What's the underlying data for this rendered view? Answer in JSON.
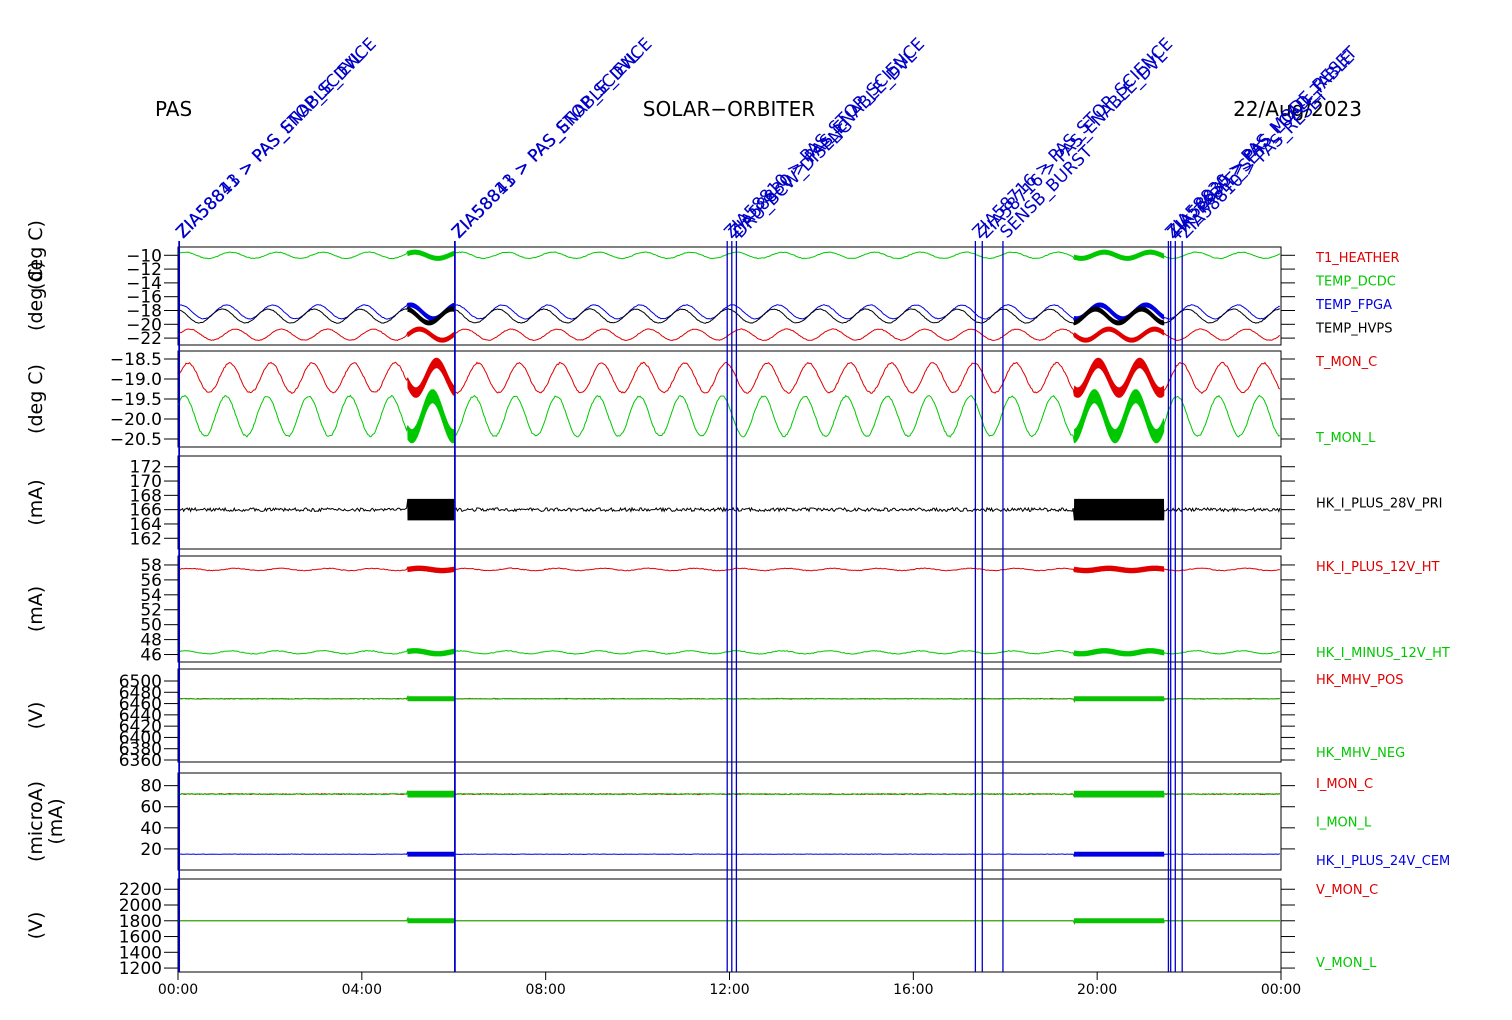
{
  "header": {
    "instrument": "PAS",
    "mission": "SOLAR−ORBITER",
    "date": "22/Aug/2023"
  },
  "colors": {
    "red": "#e00000",
    "green": "#00c800",
    "blue": "#0000e0",
    "black": "#000000",
    "event": "#0000c8"
  },
  "time_axis": {
    "label": "",
    "range_hours": [
      0,
      24
    ],
    "ticks": [
      {
        "h": 0,
        "label": "00:00"
      },
      {
        "h": 4,
        "label": "04:00"
      },
      {
        "h": 8,
        "label": "08:00"
      },
      {
        "h": 12,
        "label": "12:00"
      },
      {
        "h": 16,
        "label": "16:00"
      },
      {
        "h": 20,
        "label": "20:00"
      },
      {
        "h": 24,
        "label": "00:00"
      }
    ]
  },
  "chart_data": [
    {
      "type": "line",
      "ylabel": "(deg C)",
      "ylim": [
        -23,
        -8.8
      ],
      "ticks": [
        {
          "v": -10,
          "label": "−10"
        },
        {
          "v": -12,
          "label": "−12"
        },
        {
          "v": -14,
          "label": "−14"
        },
        {
          "v": -16,
          "label": "−16"
        },
        {
          "v": -18,
          "label": "−18"
        },
        {
          "v": -20,
          "label": "−20"
        },
        {
          "v": -22,
          "label": "−22"
        }
      ],
      "series": [
        {
          "name": "T1_HEATHER",
          "color": "#e00000",
          "mean": -21.5,
          "amp": 0.8,
          "period_h": 1.0,
          "noise": 0.05
        },
        {
          "name": "TEMP_DCDC",
          "color": "#00c800",
          "mean": -10.0,
          "amp": 0.45,
          "period_h": 1.0,
          "noise": 0.05
        },
        {
          "name": "TEMP_FPGA",
          "color": "#0000e0",
          "mean": -18.2,
          "amp": 1.0,
          "period_h": 1.0,
          "noise": 0.05
        },
        {
          "name": "TEMP_HVPS",
          "color": "#000000",
          "mean": -18.8,
          "amp": 1.0,
          "period_h": 1.0,
          "noise": 0.05
        }
      ]
    },
    {
      "type": "line",
      "ylabel": "(deg C)",
      "ylim": [
        -20.7,
        -18.3
      ],
      "ticks": [
        {
          "v": -18.5,
          "label": "−18.5"
        },
        {
          "v": -19.0,
          "label": "−19.0"
        },
        {
          "v": -19.5,
          "label": "−19.5"
        },
        {
          "v": -20.0,
          "label": "−20.0"
        },
        {
          "v": -20.5,
          "label": "−20.5"
        }
      ],
      "series": [
        {
          "name": "T_MON_C",
          "color": "#e00000",
          "mean": -18.97,
          "amp": 0.37,
          "period_h": 0.9,
          "noise": 0.02
        },
        {
          "name": "T_MON_L",
          "color": "#00c800",
          "mean": -19.93,
          "amp": 0.5,
          "period_h": 0.9,
          "noise": 0.02
        }
      ]
    },
    {
      "type": "line",
      "ylabel": "(mA)",
      "ylim": [
        160.5,
        173.5
      ],
      "ticks": [
        {
          "v": 162,
          "label": "162"
        },
        {
          "v": 164,
          "label": "164"
        },
        {
          "v": 166,
          "label": "166"
        },
        {
          "v": 168,
          "label": "168"
        },
        {
          "v": 170,
          "label": "170"
        },
        {
          "v": 172,
          "label": "172"
        }
      ],
      "series": [
        {
          "name": "HK_I_PLUS_28V_PRI",
          "color": "#000000",
          "mean": 166,
          "amp": 0,
          "period_h": 1,
          "noise": 0.25
        }
      ]
    },
    {
      "type": "line",
      "ylabel": "(mA)",
      "ylim": [
        45,
        59.2
      ],
      "ticks": [
        {
          "v": 46,
          "label": "46"
        },
        {
          "v": 48,
          "label": "48"
        },
        {
          "v": 50,
          "label": "50"
        },
        {
          "v": 52,
          "label": "52"
        },
        {
          "v": 54,
          "label": "54"
        },
        {
          "v": 56,
          "label": "56"
        },
        {
          "v": 58,
          "label": "58"
        }
      ],
      "series": [
        {
          "name": "HK_I_PLUS_12V_HT",
          "color": "#e00000",
          "mean": 57.4,
          "amp": 0.15,
          "period_h": 1.0,
          "noise": 0.05
        },
        {
          "name": "HK_I_MINUS_12V_HT",
          "color": "#00c800",
          "mean": 46.3,
          "amp": 0.2,
          "period_h": 1.0,
          "noise": 0.05
        }
      ]
    },
    {
      "type": "line",
      "ylabel": "(V)",
      "ylim": [
        0,
        10
      ],
      "ticks": [],
      "tick_labels_overlapping": [
        "6500",
        "6480",
        "6460",
        "6440",
        "6420",
        "6400",
        "6380",
        "6360"
      ],
      "series": [
        {
          "name": "HK_MHV_POS",
          "color": "#e00000",
          "mean": 6.8,
          "amp": 0,
          "period_h": 1,
          "noise": 0.04
        },
        {
          "name": "HK_MHV_NEG",
          "color": "#00c800",
          "mean": 6.8,
          "amp": 0,
          "period_h": 1,
          "noise": 0.04
        }
      ]
    },
    {
      "type": "line",
      "ylabel": "(microA)",
      "ylabel2": "(mA)",
      "ylim": [
        0,
        92
      ],
      "ticks": [
        {
          "v": 20,
          "label": "20"
        },
        {
          "v": 40,
          "label": "40"
        },
        {
          "v": 60,
          "label": "60"
        },
        {
          "v": 80,
          "label": "80"
        }
      ],
      "series": [
        {
          "name": "I_MON_C",
          "color": "#e00000",
          "mean": 72,
          "amp": 0,
          "period_h": 1,
          "noise": 0.5
        },
        {
          "name": "I_MON_L",
          "color": "#00c800",
          "mean": 72,
          "amp": 0,
          "period_h": 1,
          "noise": 0.5
        },
        {
          "name": "HK_I_PLUS_24V_CEM",
          "color": "#0000e0",
          "mean": 15,
          "amp": 0,
          "period_h": 1,
          "noise": 0.2
        }
      ]
    },
    {
      "type": "line",
      "ylabel": "(V)",
      "ylim": [
        1150,
        2330
      ],
      "ticks": [
        {
          "v": 1200,
          "label": "1200"
        },
        {
          "v": 1400,
          "label": "1400"
        },
        {
          "v": 1600,
          "label": "1600"
        },
        {
          "v": 1800,
          "label": "1800"
        },
        {
          "v": 2000,
          "label": "2000"
        },
        {
          "v": 2200,
          "label": "2200"
        }
      ],
      "series": [
        {
          "name": "V_MON_C",
          "color": "#e00000",
          "mean": 1800,
          "amp": 0,
          "period_h": 1,
          "noise": 1
        },
        {
          "name": "V_MON_L",
          "color": "#00c800",
          "mean": 1800,
          "amp": 0,
          "period_h": 1,
          "noise": 1
        }
      ]
    }
  ],
  "dense_intervals_h": [
    [
      5.0,
      6.0
    ],
    [
      19.5,
      21.45
    ]
  ],
  "events": [
    {
      "h": 0.02,
      "label": "ZIA58811 > PAS_STOP_SCIENCE"
    },
    {
      "h": 0.03,
      "label": "ZIA58843 > PAS_ENABLE_DVL"
    },
    {
      "h": 6.02,
      "label": "ZIA58811 > PAS_STOP_SCIENCE"
    },
    {
      "h": 6.03,
      "label": "ZIA58843 > PAS_ENABLE_DVL"
    },
    {
      "h": 11.95,
      "label": "ZIA58810 > PAS_STOP_SCIENCE"
    },
    {
      "h": 12.05,
      "label": "ZIA58830 > PAS_ENABLE_DVL"
    },
    {
      "h": 12.15,
      "label": "DRU_BCW_DISENG"
    },
    {
      "h": 17.35,
      "label": "ZIA58716 > PAS_STOP_SCIENCE"
    },
    {
      "h": 17.5,
      "label": "ZIA58716 > PAS_ENABLE_DVL"
    },
    {
      "h": 17.95,
      "label": "SENSB_BURST"
    },
    {
      "h": 21.55,
      "label": "ZIA58830 > PAS_MODE_RESET"
    },
    {
      "h": 21.6,
      "label": "ZIA58835 > PAS_LOAD_TABLE"
    },
    {
      "h": 21.7,
      "label": "HK_TABLE_SET"
    },
    {
      "h": 21.85,
      "label": "ZIA58810 > PAS_RESET"
    }
  ]
}
